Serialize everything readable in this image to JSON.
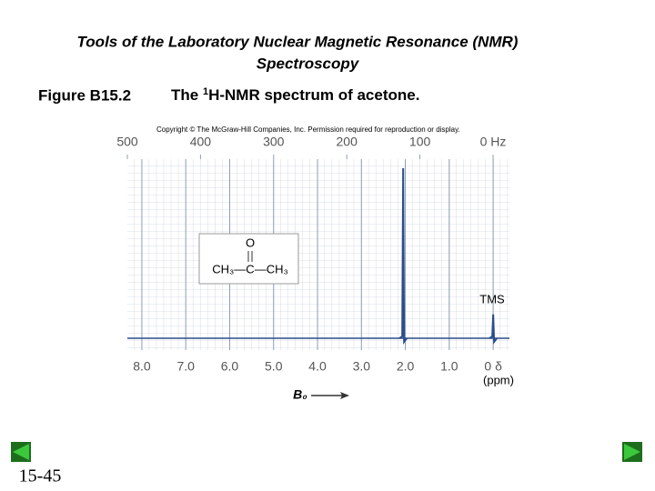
{
  "chart_data": {
    "type": "spectrum",
    "title": "Tools of the Laboratory  Nuclear Magnetic Resonance (NMR)",
    "subtitle": "Spectroscopy",
    "figure_label": "Figure B15.2",
    "caption_pre": "The ",
    "caption_sup": "1",
    "caption_post": "H-NMR spectrum of acetone.",
    "copyright": "Copyright © The McGraw-Hill Companies, Inc. Permission required for reproduction or display.",
    "xlim": [
      8.33,
      -0.37
    ],
    "xticks": [
      {
        "value": 8,
        "label": "8.0"
      },
      {
        "value": 7,
        "label": "7.0"
      },
      {
        "value": 6,
        "label": "6.0"
      },
      {
        "value": 5,
        "label": "5.0"
      },
      {
        "value": 4,
        "label": "4.0"
      },
      {
        "value": 3,
        "label": "3.0"
      },
      {
        "value": 2,
        "label": "2.0"
      },
      {
        "value": 1,
        "label": "1.0"
      },
      {
        "value": 0,
        "label": "0 δ"
      }
    ],
    "x_unit": "(ppm)",
    "x2lim": [
      500,
      -22.4
    ],
    "x2ticks": [
      500,
      400,
      300,
      200,
      100,
      {
        "value": 0,
        "label": "0 Hz"
      }
    ],
    "x_label": "B₀",
    "ylim": [
      0,
      100
    ],
    "series": [
      {
        "color": "#2b4d8c",
        "x": [
          2.05,
          0
        ],
        "values": [
          100,
          14
        ]
      }
    ],
    "annotation": "TMS",
    "molecule": {
      "top": "O",
      "bottom": "CH₃—C—CH₃"
    },
    "page_number": "15-45",
    "grid": true
  }
}
